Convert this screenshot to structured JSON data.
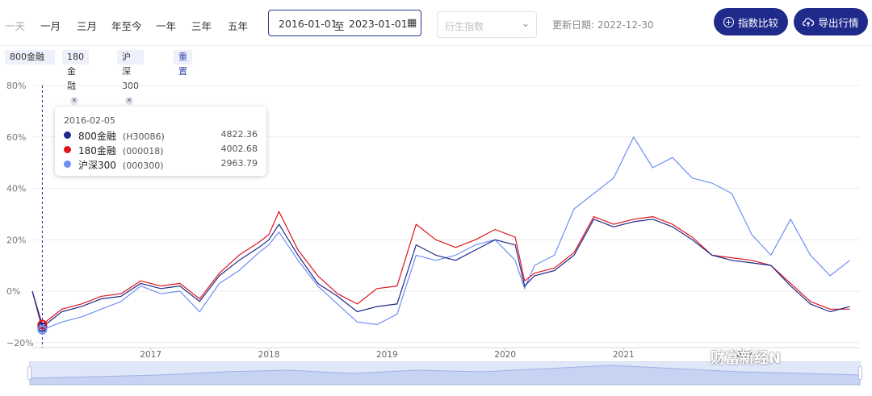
{
  "toolbar": {
    "periods": [
      "一天",
      "一月",
      "三月",
      "年至今",
      "一年",
      "三年",
      "五年"
    ],
    "date_start": "2016-01-01",
    "date_sep": "至",
    "date_end": "2023-01-01",
    "derived_placeholder": "衍生指数",
    "update_label": "更新日期: 2022-12-30",
    "compare_label": "指数比较",
    "export_label": "导出行情"
  },
  "tags": [
    {
      "label": "800金融"
    },
    {
      "label": "180金融"
    },
    {
      "label": "沪深300"
    },
    {
      "label": "重置"
    }
  ],
  "tooltip": {
    "date": "2016-02-05",
    "rows": [
      {
        "name": "800金融",
        "code": "(H30086)",
        "value": "4822.36",
        "color": "#1f2a8a"
      },
      {
        "name": "180金融",
        "code": "(000018)",
        "value": "4002.68",
        "color": "#e0141e"
      },
      {
        "name": "沪深300",
        "code": "(000300)",
        "value": "2963.79",
        "color": "#6f8ff2"
      }
    ]
  },
  "watermark": "财富新经N",
  "chart_data": {
    "type": "line",
    "ylabel": "",
    "xlabel": "",
    "ylim": [
      -20,
      80
    ],
    "yticks": [
      "80%",
      "60%",
      "40%",
      "20%",
      "0%",
      "−20%"
    ],
    "xticks": [
      "2017",
      "2018",
      "2019",
      "2020",
      "2021",
      "2022"
    ],
    "x": [
      "2016-01",
      "2016-02",
      "2016-04",
      "2016-06",
      "2016-08",
      "2016-10",
      "2016-12",
      "2017-02",
      "2017-04",
      "2017-06",
      "2017-08",
      "2017-10",
      "2017-12",
      "2018-01",
      "2018-02",
      "2018-04",
      "2018-06",
      "2018-08",
      "2018-10",
      "2018-12",
      "2019-02",
      "2019-04",
      "2019-06",
      "2019-08",
      "2019-10",
      "2019-12",
      "2020-02",
      "2020-03",
      "2020-04",
      "2020-06",
      "2020-08",
      "2020-10",
      "2020-12",
      "2021-02",
      "2021-04",
      "2021-06",
      "2021-08",
      "2021-10",
      "2021-12",
      "2022-02",
      "2022-04",
      "2022-06",
      "2022-08",
      "2022-10",
      "2022-12"
    ],
    "series": [
      {
        "name": "800金融",
        "color": "#1f2a8a",
        "values": [
          0,
          -14,
          -8,
          -6,
          -3,
          -2,
          3,
          1,
          2,
          -4,
          6,
          12,
          17,
          20,
          26,
          14,
          3,
          -2,
          -8,
          -6,
          -5,
          18,
          14,
          12,
          16,
          20,
          18,
          2,
          6,
          8,
          14,
          28,
          25,
          27,
          28,
          25,
          20,
          14,
          12,
          11,
          10,
          2,
          -5,
          -8,
          -6
        ]
      },
      {
        "name": "180金融",
        "color": "#e0141e",
        "values": [
          0,
          -13,
          -7,
          -5,
          -2,
          -1,
          4,
          2,
          3,
          -3,
          7,
          14,
          19,
          22,
          31,
          16,
          6,
          -1,
          -5,
          1,
          2,
          26,
          20,
          17,
          20,
          24,
          21,
          4,
          7,
          9,
          15,
          29,
          26,
          28,
          29,
          26,
          21,
          14,
          13,
          12,
          10,
          3,
          -4,
          -7,
          -7
        ]
      },
      {
        "name": "沪深300",
        "color": "#6f8ff2",
        "values": [
          0,
          -15,
          -12,
          -10,
          -7,
          -4,
          2,
          -1,
          0,
          -8,
          3,
          8,
          15,
          18,
          23,
          12,
          2,
          -5,
          -12,
          -13,
          -9,
          14,
          12,
          14,
          18,
          20,
          12,
          1,
          10,
          14,
          32,
          38,
          44,
          60,
          48,
          52,
          44,
          42,
          38,
          22,
          14,
          28,
          14,
          6,
          12
        ]
      }
    ]
  }
}
